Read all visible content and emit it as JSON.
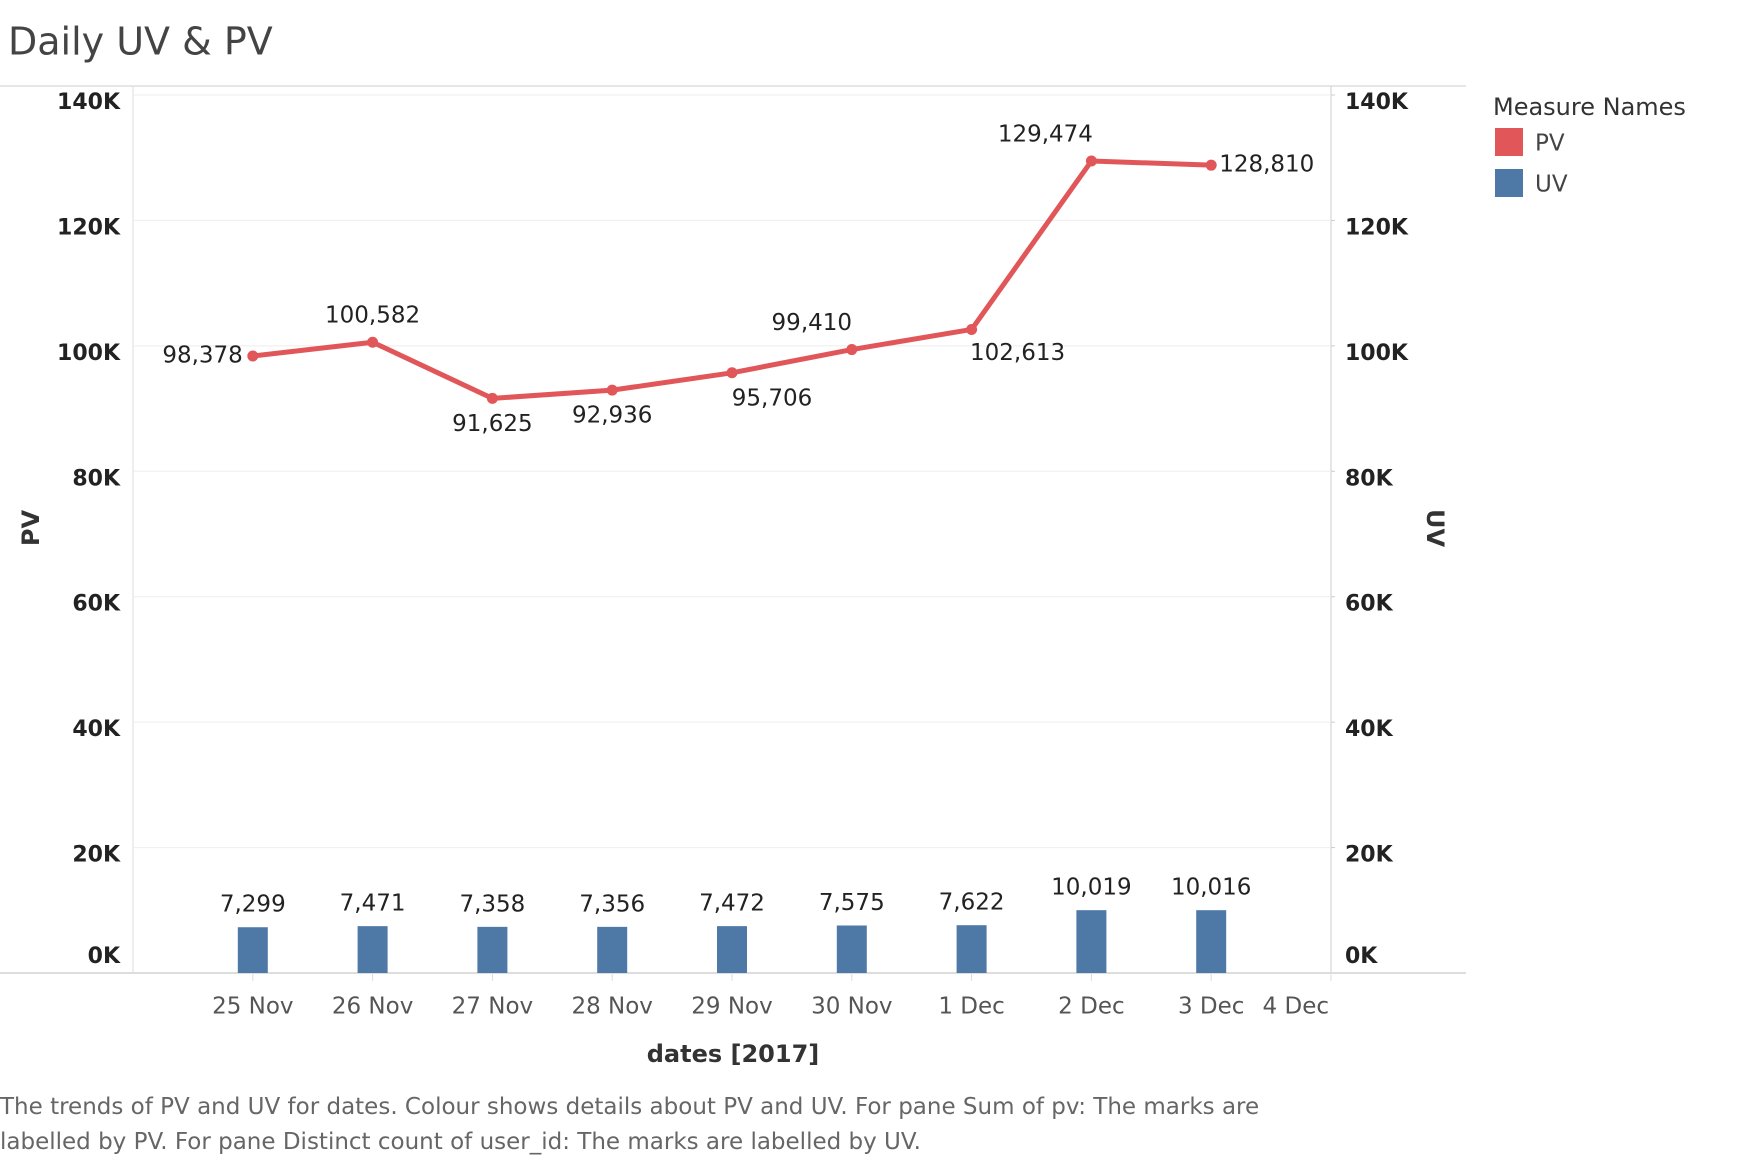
{
  "chart_data": {
    "type": "bar_line",
    "title": "Daily UV & PV",
    "x_label": "dates [2017]",
    "y_label": "PV",
    "y2_label": "UV",
    "legend_title": "Measure Names",
    "legend_position": "right",
    "caption": "The trends of PV and UV for dates.  Colour shows details about PV and UV.  For pane Sum of pv:  The marks are labelled by PV.  For pane Distinct count of user_id:  The marks are labelled by UV.",
    "categories": [
      "25 Nov",
      "26 Nov",
      "27 Nov",
      "28 Nov",
      "29 Nov",
      "30 Nov",
      "1 Dec",
      "2 Dec",
      "3 Dec",
      "4 Dec"
    ],
    "series": [
      {
        "name": "PV",
        "type": "line",
        "color": "#e15759",
        "axis": "y",
        "values": [
          98378,
          100582,
          91625,
          92936,
          95706,
          99410,
          102613,
          129474,
          128810,
          null
        ],
        "value_labels": [
          "98,378",
          "100,582",
          "91,625",
          "92,936",
          "95,706",
          "99,410",
          "102,613",
          "129,474",
          "128,810",
          null
        ]
      },
      {
        "name": "UV",
        "type": "bar",
        "color": "#4e79a7",
        "axis": "y2",
        "values": [
          7299,
          7471,
          7358,
          7356,
          7472,
          7575,
          7622,
          10019,
          10016,
          null
        ],
        "value_labels": [
          "7,299",
          "7,471",
          "7,358",
          "7,356",
          "7,472",
          "7,575",
          "7,622",
          "10,019",
          "10,016",
          null
        ]
      }
    ],
    "ylim": [
      0,
      140000
    ],
    "yticks": [
      {
        "value": 0,
        "label": "0K"
      },
      {
        "value": 20000,
        "label": "20K"
      },
      {
        "value": 40000,
        "label": "40K"
      },
      {
        "value": 60000,
        "label": "60K"
      },
      {
        "value": 80000,
        "label": "80K"
      },
      {
        "value": 100000,
        "label": "100K"
      },
      {
        "value": 120000,
        "label": "120K"
      },
      {
        "value": 140000,
        "label": "140K"
      }
    ],
    "y2lim": [
      0,
      140000
    ],
    "y2ticks": [
      {
        "value": 0,
        "label": "0K"
      },
      {
        "value": 20000,
        "label": "20K"
      },
      {
        "value": 40000,
        "label": "40K"
      },
      {
        "value": 60000,
        "label": "60K"
      },
      {
        "value": 80000,
        "label": "80K"
      },
      {
        "value": 100000,
        "label": "100K"
      },
      {
        "value": 120000,
        "label": "120K"
      },
      {
        "value": 140000,
        "label": "140K"
      }
    ],
    "grid": true
  }
}
